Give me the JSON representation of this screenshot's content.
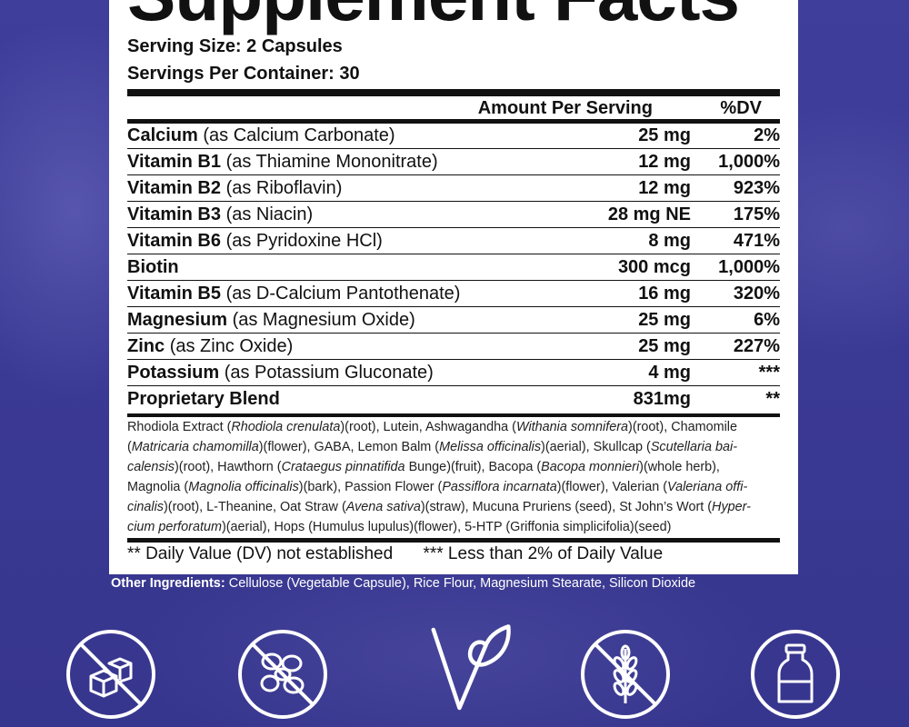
{
  "title": "Supplement Facts",
  "serving_size": "Serving Size: 2 Capsules",
  "servings_per_container": "Servings Per Container: 30",
  "header": {
    "amount": "Amount Per Serving",
    "dv": "%DV"
  },
  "rows": [
    {
      "name": "Calcium",
      "source": "(as Calcium Carbonate)",
      "amount": "25 mg",
      "dv": "2%"
    },
    {
      "name": "Vitamin B1",
      "source": "(as Thiamine Mononitrate)",
      "amount": "12 mg",
      "dv": "1,000%"
    },
    {
      "name": "Vitamin B2",
      "source": "(as Riboflavin)",
      "amount": "12 mg",
      "dv": "923%"
    },
    {
      "name": "Vitamin B3",
      "source": "(as Niacin)",
      "amount": "28 mg NE",
      "dv": "175%"
    },
    {
      "name": "Vitamin B6",
      "source": "(as Pyridoxine HCl)",
      "amount": "8 mg",
      "dv": "471%"
    },
    {
      "name": "Biotin",
      "source": "",
      "amount": "300 mcg",
      "dv": "1,000%"
    },
    {
      "name": "Vitamin B5",
      "source": "(as D-Calcium Pantothenate)",
      "amount": "16 mg",
      "dv": "320%"
    },
    {
      "name": "Magnesium",
      "source": "(as Magnesium Oxide)",
      "amount": "25 mg",
      "dv": "6%"
    },
    {
      "name": "Zinc",
      "source": "(as Zinc Oxide)",
      "amount": "25 mg",
      "dv": "227%"
    },
    {
      "name": "Potassium",
      "source": "(as Potassium Gluconate)",
      "amount": "4 mg",
      "dv": "***"
    },
    {
      "name": "Proprietary Blend",
      "source": "",
      "amount": "831mg",
      "dv": "**"
    }
  ],
  "blend_lines": [
    [
      {
        "t": "Rhodiola Extract ("
      },
      {
        "t": "Rhodiola crenulata",
        "i": true
      },
      {
        "t": ")(root), Lutein, Ashwagandha ("
      },
      {
        "t": "Withania somnifera",
        "i": true
      },
      {
        "t": ")(root), Chamomile"
      }
    ],
    [
      {
        "t": "("
      },
      {
        "t": "Matricaria chamomilla",
        "i": true
      },
      {
        "t": ")(flower), GABA, Lemon Balm ("
      },
      {
        "t": "Melissa officinalis",
        "i": true
      },
      {
        "t": ")(aerial), Skullcap ("
      },
      {
        "t": "Scutellaria bai-",
        "i": true
      }
    ],
    [
      {
        "t": "calensis",
        "i": true
      },
      {
        "t": ")(root), Hawthorn ("
      },
      {
        "t": "Crataegus pinnatifida",
        "i": true
      },
      {
        "t": " Bunge)(fruit), Bacopa ("
      },
      {
        "t": "Bacopa monnieri",
        "i": true
      },
      {
        "t": ")(whole herb),"
      }
    ],
    [
      {
        "t": "Magnolia ("
      },
      {
        "t": "Magnolia officinalis",
        "i": true
      },
      {
        "t": ")(bark), Passion Flower ("
      },
      {
        "t": "Passiflora incarnata",
        "i": true
      },
      {
        "t": ")(flower), Valerian ("
      },
      {
        "t": "Valeriana offi-",
        "i": true
      }
    ],
    [
      {
        "t": "cinalis",
        "i": true
      },
      {
        "t": ")(root), L-Theanine, Oat Straw ("
      },
      {
        "t": "Avena sativa",
        "i": true
      },
      {
        "t": ")(straw), Mucuna Pruriens (seed), St John’s Wort ("
      },
      {
        "t": "Hyper-",
        "i": true
      }
    ],
    [
      {
        "t": "cium perforatum",
        "i": true
      },
      {
        "t": ")(aerial), Hops (Humulus lupulus)(flower), 5-HTP (Griffonia simplicifolia)(seed)"
      }
    ]
  ],
  "footnotes": {
    "double": "** Daily Value (DV) not established",
    "triple": "*** Less than 2% of Daily Value"
  },
  "other_ingredients": {
    "label": "Other Ingredients:",
    "text": " Cellulose (Vegetable Capsule), Rice Flour, Magnesium Stearate, Silicon Dioxide"
  },
  "icons": [
    "no-sugar-icon",
    "no-soy-icon",
    "vegan-icon",
    "no-gluten-icon",
    "no-dairy-icon"
  ]
}
